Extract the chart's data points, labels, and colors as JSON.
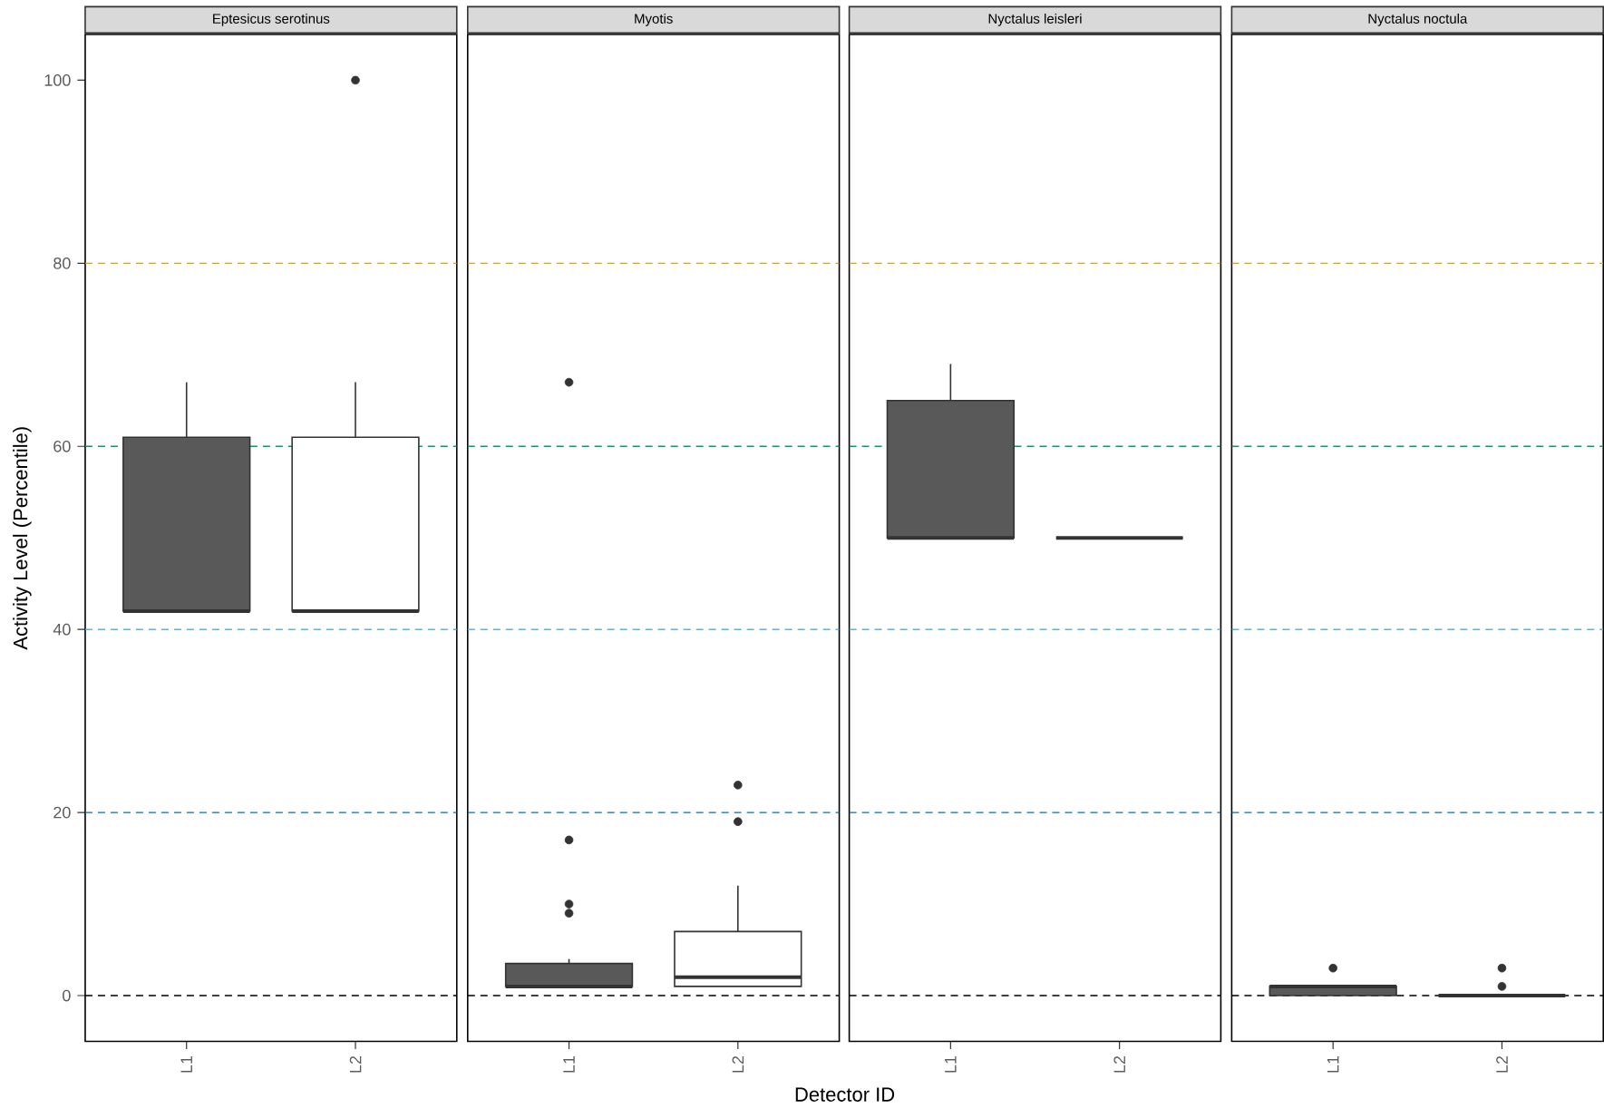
{
  "chart_data": [
    {
      "type": "box",
      "title": "Eptesicus serotinus",
      "ylabel": "Activity Level (Percentile)",
      "categories": [
        "L1",
        "L2"
      ],
      "colors": [
        "#595959",
        "#ffffff"
      ],
      "boxes": [
        {
          "low": 42,
          "q1": 42,
          "median": 42,
          "q3": 61,
          "high": 67
        },
        {
          "low": 42,
          "q1": 42,
          "median": 42,
          "q3": 61,
          "high": 67,
          "outliers": [
            100
          ]
        }
      ],
      "ylim": [
        -5,
        105
      ],
      "yticks": [
        0,
        20,
        40,
        60,
        80,
        100
      ],
      "ref_lines": [
        {
          "axis": "y",
          "value": 0,
          "color": "#000000",
          "line_style": "dashed"
        },
        {
          "axis": "y",
          "value": 20,
          "color": "#0072b2",
          "line_style": "dashed"
        },
        {
          "axis": "y",
          "value": 40,
          "color": "#56b4e9",
          "line_style": "dashed"
        },
        {
          "axis": "y",
          "value": 60,
          "color": "#009e73",
          "line_style": "dashed"
        },
        {
          "axis": "y",
          "value": 80,
          "color": "#e69f00",
          "line_style": "dashed"
        }
      ]
    },
    {
      "type": "box",
      "title": "Myotis",
      "xlabel": "Detector ID",
      "categories": [
        "L1",
        "L2"
      ],
      "colors": [
        "#595959",
        "#ffffff"
      ],
      "boxes": [
        {
          "low": 1,
          "q1": 1,
          "median": 1,
          "q3": 3.5,
          "high": 4,
          "outliers": [
            9,
            10,
            17,
            67
          ]
        },
        {
          "low": 1,
          "q1": 1,
          "median": 2,
          "q3": 7,
          "high": 12,
          "outliers": [
            19,
            23
          ]
        }
      ],
      "ylim": [
        -5,
        105
      ],
      "tick_labels": "x",
      "ref_lines": [
        {
          "axis": "y",
          "value": 0,
          "color": "#000000",
          "line_style": "dashed"
        },
        {
          "axis": "y",
          "value": 20,
          "color": "#0072b2",
          "line_style": "dashed"
        },
        {
          "axis": "y",
          "value": 40,
          "color": "#56b4e9",
          "line_style": "dashed"
        },
        {
          "axis": "y",
          "value": 60,
          "color": "#009e73",
          "line_style": "dashed"
        },
        {
          "axis": "y",
          "value": 80,
          "color": "#e69f00",
          "line_style": "dashed"
        }
      ]
    },
    {
      "type": "box",
      "title": "Nyctalus leisleri",
      "categories": [
        "L1",
        "L2"
      ],
      "colors": [
        "#595959",
        "#333333"
      ],
      "boxes": [
        {
          "low": 50,
          "q1": 50,
          "median": 50,
          "q3": 65,
          "high": 69
        },
        {
          "low": 50,
          "q1": 50,
          "median": 50,
          "q3": 50,
          "high": 50
        }
      ],
      "ylim": [
        -5,
        105
      ],
      "tick_labels": "x",
      "ref_lines": [
        {
          "axis": "y",
          "value": 0,
          "color": "#000000",
          "line_style": "dashed"
        },
        {
          "axis": "y",
          "value": 20,
          "color": "#0072b2",
          "line_style": "dashed"
        },
        {
          "axis": "y",
          "value": 40,
          "color": "#56b4e9",
          "line_style": "dashed"
        },
        {
          "axis": "y",
          "value": 60,
          "color": "#009e73",
          "line_style": "dashed"
        },
        {
          "axis": "y",
          "value": 80,
          "color": "#e69f00",
          "line_style": "dashed"
        }
      ]
    },
    {
      "type": "box",
      "title": "Nyctalus noctula",
      "categories": [
        "L1",
        "L2"
      ],
      "colors": [
        "#595959",
        "#333333"
      ],
      "boxes": [
        {
          "low": 0,
          "q1": 0,
          "median": 1,
          "q3": 1,
          "high": 1,
          "outliers": [
            3
          ]
        },
        {
          "low": 0,
          "q1": 0,
          "median": 0,
          "q3": 0,
          "high": 0,
          "outliers": [
            1,
            3
          ]
        }
      ],
      "ylim": [
        -5,
        105
      ],
      "tick_labels": "x",
      "ref_lines": [
        {
          "axis": "y",
          "value": 0,
          "color": "#000000",
          "line_style": "dashed"
        },
        {
          "axis": "y",
          "value": 20,
          "color": "#0072b2",
          "line_style": "dashed"
        },
        {
          "axis": "y",
          "value": 40,
          "color": "#56b4e9",
          "line_style": "dashed"
        },
        {
          "axis": "y",
          "value": 60,
          "color": "#009e73",
          "line_style": "dashed"
        },
        {
          "axis": "y",
          "value": 80,
          "color": "#e69f00",
          "line_style": "dashed"
        }
      ]
    }
  ]
}
